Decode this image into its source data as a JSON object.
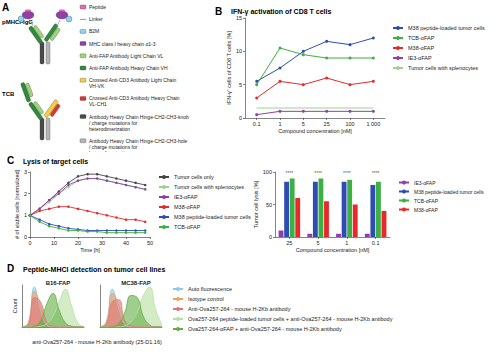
{
  "diagram": {
    "label": "A",
    "constructs": [
      "pMHCI-IgG",
      "TCB"
    ],
    "legend": [
      {
        "text": "Peptide",
        "color": "#e86aa6"
      },
      {
        "text": "Linker",
        "color": "#9a9a9a",
        "marker": "line"
      },
      {
        "text": "B2M",
        "color": "#8fd3ef"
      },
      {
        "text": "MHC class I heavy chain α1-3",
        "color": "#8e3fa8"
      },
      {
        "text": "Anti-FAP Antibody Light Chain VL",
        "color": "#9fd67a"
      },
      {
        "text": "Anti-FAP Antibody Heavy Chain VH",
        "color": "#2e8b3a"
      },
      {
        "text": "Crossed Anti-CD3 Antibody Light Chain VH-VK",
        "color": "#f2d13a"
      },
      {
        "text": "Crossed Anti-CD3 Antibody Heavy Chain VL-CH1",
        "color": "#e0342c"
      },
      {
        "text": "Antibody Heavy Chain Hinge-CH2-CH3-knob / charge mutations for heterodimerization",
        "color": "#4a4a4a"
      },
      {
        "text": "Antibody Heavy Chain Hinge-CH2-CH3-hole / charge mutations for heterodimerization",
        "color": "#b5b5b5"
      }
    ]
  },
  "chart_data": [
    {
      "label": "B",
      "type": "line",
      "title": "IFN-γ activation of CD8 T cells",
      "x_label": "Compound concentration [nM]",
      "y_label": "IFN-γ⁺ cells of CD8 T cells [%]",
      "categories": [
        "0.1",
        "1",
        "5",
        "25",
        "100",
        "1 000"
      ],
      "series": [
        {
          "name": "M38 peptide-loaded tumor cells",
          "color": "#2f4cb3",
          "marker": "circle",
          "values": [
            5.5,
            7.5,
            10,
            11.5,
            11,
            12
          ]
        },
        {
          "name": "TCB-αFAP",
          "color": "#3cb043",
          "marker": "circle",
          "values": [
            5,
            10.5,
            9.5,
            9,
            9,
            9
          ]
        },
        {
          "name": "M38-αFAP",
          "color": "#e8282b",
          "marker": "circle",
          "values": [
            3,
            5.5,
            5,
            6,
            5,
            5.5
          ]
        },
        {
          "name": "IE3-αFAP",
          "color": "#8e3fa8",
          "marker": "circle",
          "values": [
            0.5,
            1,
            1,
            1,
            1,
            1
          ]
        },
        {
          "name": "Tumor cells with splenocytes",
          "color": "#9ed38c",
          "marker": "none",
          "values": [
            1.5,
            1.5,
            1.5,
            1.5,
            1.5,
            1.5
          ]
        }
      ],
      "ylim": [
        0,
        15
      ],
      "yticks": [
        0,
        5,
        10,
        15
      ],
      "legend": "right"
    },
    {
      "label": "C",
      "type": "line",
      "title": "Lysis of target cells",
      "x_label": "Time [h]",
      "y_label": "# of viable cells [normalized]",
      "x": [
        0,
        4,
        8,
        12,
        16,
        20,
        24,
        28,
        32,
        36,
        40,
        44,
        48
      ],
      "series": [
        {
          "name": "Tumor cells only",
          "color": "#444444",
          "marker": "circle",
          "values": [
            1,
            1.3,
            1.7,
            2.1,
            2.5,
            2.8,
            2.9,
            2.9,
            2.8,
            2.7,
            2.6,
            2.5,
            2.4
          ]
        },
        {
          "name": "Tumor cells with splenocytes",
          "color": "#9ed38c",
          "marker": "circle",
          "values": [
            1,
            1.3,
            1.6,
            2.0,
            2.3,
            2.6,
            2.7,
            2.7,
            2.6,
            2.5,
            2.4,
            2.3,
            2.2
          ]
        },
        {
          "name": "IE3-αFAP",
          "color": "#8e3fa8",
          "marker": "circle",
          "values": [
            1,
            1.3,
            1.7,
            2.0,
            2.4,
            2.6,
            2.7,
            2.7,
            2.6,
            2.5,
            2.4,
            2.3,
            2.2
          ]
        },
        {
          "name": "M38-αFAP",
          "color": "#e8282b",
          "marker": "circle",
          "values": [
            1,
            1.2,
            1.3,
            1.4,
            1.4,
            1.3,
            1.2,
            1.1,
            1.0,
            0.9,
            0.8,
            0.8,
            0.7
          ]
        },
        {
          "name": "M38 peptide-loaded tumor cells",
          "color": "#2f4cb3",
          "marker": "circle",
          "values": [
            1,
            0.8,
            0.6,
            0.5,
            0.4,
            0.35,
            0.3,
            0.3,
            0.3,
            0.3,
            0.3,
            0.3,
            0.3
          ]
        },
        {
          "name": "TCB-αFAP",
          "color": "#3cb043",
          "marker": "circle",
          "values": [
            1,
            0.7,
            0.5,
            0.4,
            0.3,
            0.3,
            0.25,
            0.25,
            0.2,
            0.2,
            0.2,
            0.2,
            0.2
          ]
        }
      ],
      "xlim": [
        0,
        50
      ],
      "xticks": [
        0,
        10,
        20,
        30,
        40,
        50
      ],
      "ylim": [
        0,
        3
      ],
      "yticks": [
        0,
        1,
        2,
        3
      ],
      "legend": "right"
    },
    {
      "type": "bar",
      "x_label": "Compound concentration [nM]",
      "y_label": "Tumor cell lysis [%]",
      "categories": [
        "25",
        "5",
        "1",
        "0.1"
      ],
      "series": [
        {
          "name": "IE3-αFAP",
          "color": "#8e3fa8",
          "values": [
            10,
            5,
            5,
            5
          ]
        },
        {
          "name": "M38 peptide-loaded tumor cells",
          "color": "#2f4cb3",
          "values": [
            85,
            85,
            85,
            80
          ]
        },
        {
          "name": "TCB-αFAP",
          "color": "#3cb043",
          "values": [
            90,
            90,
            88,
            85
          ]
        },
        {
          "name": "M38-αFAP",
          "color": "#e8282b",
          "values": [
            60,
            55,
            50,
            40
          ]
        }
      ],
      "annotations": [
        {
          "category": "25",
          "text": "****",
          "y": 98
        },
        {
          "category": "5",
          "text": "****",
          "y": 98
        },
        {
          "category": "1",
          "text": "****",
          "y": 98
        },
        {
          "category": "0.1",
          "text": "****",
          "y": 98
        }
      ],
      "ylim": [
        0,
        100
      ],
      "yticks": [
        0,
        50,
        100
      ],
      "legend": "right"
    },
    {
      "label": "D",
      "type": "area",
      "title": "Peptide-MHCI detection on tumor cell lines",
      "x_label": "anti-Ova257-264 - mouse H-2Kb antibody (25-D1.16)",
      "y_label": "Count",
      "x": [
        0,
        1,
        2,
        3,
        4,
        5,
        6,
        7,
        8,
        9,
        10
      ],
      "xlim": [
        0,
        10
      ],
      "ylim": [
        0,
        100
      ],
      "tick_labels": false,
      "legend": "right",
      "subplots": [
        {
          "title": "B16-FAP",
          "series": [
            {
              "name": "Auto fluorescence",
              "color": "#8ccbe8",
              "values": [
                0,
                10,
                95,
                40,
                5,
                0,
                0,
                0,
                0,
                0,
                0
              ]
            },
            {
              "name": "Isotype control",
              "color": "#f0a060",
              "values": [
                0,
                8,
                85,
                50,
                8,
                0,
                0,
                0,
                0,
                0,
                0
              ]
            },
            {
              "name": "Anti-Ova257-264 - mouse H-2Kb antibody",
              "color": "#e57373",
              "values": [
                0,
                5,
                70,
                60,
                12,
                2,
                0,
                0,
                0,
                0,
                0
              ]
            },
            {
              "name": "Ova257-264 peptide-loaded tumor cells + anti-Ova257-264 - mouse H-2Kb antibody",
              "color": "#b8e0a0",
              "values": [
                0,
                0,
                0,
                2,
                8,
                25,
                60,
                90,
                50,
                10,
                0
              ]
            },
            {
              "name": "Ova257-264-αFAP + anti-Ova257-264 - mouse H-2Kb antibody",
              "color": "#5fae45",
              "values": [
                0,
                0,
                2,
                15,
                55,
                80,
                40,
                10,
                2,
                0,
                0
              ]
            }
          ]
        },
        {
          "title": "MC38-FAP",
          "series": [
            {
              "name": "Auto fluorescence",
              "color": "#8ccbe8",
              "values": [
                0,
                12,
                90,
                45,
                6,
                0,
                0,
                0,
                0,
                0,
                0
              ]
            },
            {
              "name": "Isotype control",
              "color": "#f0a060",
              "values": [
                0,
                10,
                80,
                55,
                10,
                0,
                0,
                0,
                0,
                0,
                0
              ]
            },
            {
              "name": "Anti-Ova257-264 - mouse H-2Kb antibody",
              "color": "#e57373",
              "values": [
                0,
                6,
                60,
                65,
                15,
                3,
                0,
                0,
                0,
                0,
                0
              ]
            },
            {
              "name": "Ova257-264 peptide-loaded tumor cells + anti-Ova257-264 - mouse H-2Kb antibody",
              "color": "#b8e0a0",
              "values": [
                0,
                0,
                0,
                0,
                3,
                12,
                35,
                75,
                95,
                40,
                5
              ]
            },
            {
              "name": "Ova257-264-αFAP + anti-Ova257-264 - mouse H-2Kb antibody",
              "color": "#5fae45",
              "values": [
                0,
                0,
                1,
                8,
                35,
                75,
                70,
                25,
                5,
                0,
                0
              ]
            }
          ]
        }
      ]
    }
  ]
}
